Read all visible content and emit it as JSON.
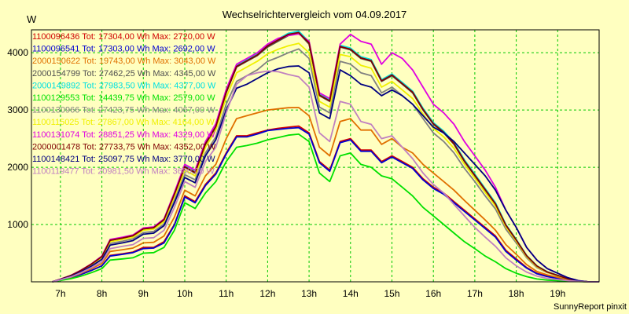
{
  "chart_data": {
    "type": "line",
    "title": "Wechselrichtervergleich vom 04.09.2017",
    "ylabel": "W",
    "footer": "SunnyReport pinxit",
    "ylim": [
      0,
      4400
    ],
    "xlim": [
      6.3,
      20.0
    ],
    "y_ticks": [
      1000,
      2000,
      3000,
      4000
    ],
    "x_ticks": [
      {
        "v": 7,
        "label": "7h"
      },
      {
        "v": 8,
        "label": "8h"
      },
      {
        "v": 9,
        "label": "9h"
      },
      {
        "v": 10,
        "label": "10h"
      },
      {
        "v": 11,
        "label": "11h"
      },
      {
        "v": 12,
        "label": "12h"
      },
      {
        "v": 13,
        "label": "13h"
      },
      {
        "v": 14,
        "label": "14h"
      },
      {
        "v": 15,
        "label": "15h"
      },
      {
        "v": 16,
        "label": "16h"
      },
      {
        "v": 17,
        "label": "17h"
      },
      {
        "v": 18,
        "label": "18h"
      },
      {
        "v": 19,
        "label": "19h"
      }
    ],
    "grid": true,
    "legend_position": "top-left",
    "background": "#ffffc0",
    "plot_background": "#ffffc0",
    "grid_color": "#00c800",
    "x": [
      6.8,
      7.0,
      7.25,
      7.5,
      7.75,
      8.0,
      8.2,
      8.5,
      8.75,
      9.0,
      9.25,
      9.5,
      9.75,
      10.0,
      10.25,
      10.5,
      10.75,
      11.0,
      11.25,
      11.5,
      11.75,
      12.0,
      12.25,
      12.5,
      12.75,
      13.0,
      13.25,
      13.5,
      13.75,
      14.0,
      14.25,
      14.5,
      14.75,
      15.0,
      15.25,
      15.5,
      15.75,
      16.0,
      16.25,
      16.5,
      16.75,
      17.0,
      17.25,
      17.5,
      17.75,
      18.0,
      18.25,
      18.5,
      18.75,
      19.0,
      19.25,
      19.5,
      19.75,
      20.0
    ],
    "series": [
      {
        "name": "1100096436 Tot: 17304,00 Wh Max: 2720,00 W",
        "color": "#d00000",
        "values": [
          0,
          30,
          70,
          130,
          200,
          280,
          460,
          490,
          520,
          600,
          600,
          700,
          1000,
          1500,
          1400,
          1700,
          1900,
          2250,
          2550,
          2550,
          2600,
          2650,
          2680,
          2700,
          2720,
          2600,
          2100,
          1950,
          2450,
          2500,
          2300,
          2300,
          2100,
          2200,
          2100,
          2000,
          1800,
          1650,
          1550,
          1400,
          1250,
          1100,
          950,
          800,
          550,
          400,
          250,
          150,
          100,
          70,
          30,
          10,
          0,
          0
        ]
      },
      {
        "name": "1100096541 Tot: 17303,00 Wh Max: 2692,00 W",
        "color": "#0000d0",
        "values": [
          0,
          30,
          70,
          130,
          200,
          280,
          450,
          480,
          510,
          580,
          590,
          680,
          990,
          1480,
          1380,
          1680,
          1880,
          2230,
          2530,
          2530,
          2580,
          2640,
          2660,
          2680,
          2692,
          2580,
          2080,
          1930,
          2430,
          2480,
          2280,
          2280,
          2080,
          2180,
          2080,
          1980,
          1780,
          1630,
          1530,
          1380,
          1230,
          1080,
          930,
          780,
          530,
          380,
          240,
          140,
          90,
          60,
          25,
          8,
          0,
          0
        ]
      },
      {
        "name": "2000150622 Tot: 19743,00 Wh Max: 3043,00 W",
        "color": "#e07000",
        "values": [
          0,
          35,
          80,
          150,
          230,
          320,
          530,
          560,
          590,
          680,
          690,
          800,
          1130,
          1600,
          1500,
          1850,
          2050,
          2500,
          2850,
          2900,
          2950,
          3000,
          3020,
          3040,
          3043,
          2900,
          2350,
          2200,
          2800,
          2850,
          2650,
          2650,
          2400,
          2500,
          2350,
          2250,
          2050,
          1900,
          1750,
          1600,
          1420,
          1250,
          1080,
          900,
          650,
          480,
          300,
          180,
          120,
          80,
          35,
          10,
          0,
          0
        ]
      },
      {
        "name": "2000154799 Tot: 27462,25 Wh Max: 4345,00 W",
        "color": "#505050",
        "values": [
          0,
          45,
          110,
          200,
          310,
          440,
          720,
          760,
          800,
          920,
          940,
          1080,
          1520,
          2000,
          1900,
          2400,
          2700,
          3300,
          3750,
          3850,
          3950,
          4100,
          4200,
          4300,
          4345,
          4150,
          3250,
          3150,
          4100,
          4050,
          3900,
          3850,
          3500,
          3600,
          3450,
          3300,
          3000,
          2750,
          2600,
          2400,
          2100,
          1850,
          1600,
          1350,
          980,
          720,
          450,
          270,
          170,
          110,
          50,
          15,
          0,
          0
        ]
      },
      {
        "name": "2000149892 Tot: 27983,50 Wh Max: 4377,00 W",
        "color": "#00e0e0",
        "values": [
          0,
          45,
          110,
          200,
          310,
          440,
          730,
          770,
          810,
          930,
          950,
          1090,
          1540,
          2020,
          1920,
          2420,
          2720,
          3330,
          3780,
          3880,
          3980,
          4140,
          4240,
          4340,
          4377,
          4190,
          3280,
          3180,
          4130,
          4080,
          3930,
          3880,
          3530,
          3630,
          3480,
          3330,
          3030,
          2780,
          2630,
          2430,
          2130,
          1880,
          1630,
          1380,
          1000,
          740,
          460,
          280,
          175,
          115,
          52,
          16,
          0,
          0
        ]
      },
      {
        "name": "1100129553 Tot: 14439,75 Wh Max: 2579,00 W",
        "color": "#00e000",
        "values": [
          0,
          25,
          55,
          100,
          160,
          230,
          380,
          400,
          420,
          500,
          510,
          600,
          900,
          1380,
          1280,
          1550,
          1750,
          2100,
          2350,
          2380,
          2420,
          2480,
          2520,
          2560,
          2579,
          2450,
          1900,
          1750,
          2200,
          2250,
          2050,
          2000,
          1850,
          1800,
          1650,
          1500,
          1300,
          1150,
          1000,
          850,
          700,
          580,
          450,
          350,
          230,
          150,
          90,
          50,
          30,
          20,
          10,
          5,
          0,
          0
        ]
      },
      {
        "name": "1100130966 Tot: 27423,75 Wh Max: 4067,00 W",
        "color": "#808080",
        "values": [
          0,
          42,
          100,
          185,
          290,
          410,
          670,
          710,
          750,
          860,
          880,
          1010,
          1420,
          1870,
          1780,
          2250,
          2530,
          3100,
          3500,
          3600,
          3700,
          3850,
          3920,
          4000,
          4067,
          3900,
          3050,
          2950,
          3850,
          3800,
          3650,
          3600,
          3300,
          3400,
          3250,
          3100,
          2850,
          2600,
          2450,
          2250,
          1980,
          1750,
          1500,
          1270,
          920,
          680,
          420,
          250,
          160,
          105,
          48,
          14,
          0,
          0
        ]
      },
      {
        "name": "1100115025 Tot: 27867,00 Wh Max: 4164,00 W",
        "color": "#f0f000",
        "values": [
          0,
          44,
          105,
          195,
          300,
          430,
          700,
          740,
          780,
          900,
          920,
          1050,
          1480,
          1950,
          1850,
          2350,
          2650,
          3220,
          3650,
          3750,
          3850,
          3980,
          4060,
          4120,
          4164,
          4000,
          3150,
          3050,
          3970,
          3930,
          3780,
          3730,
          3400,
          3500,
          3350,
          3200,
          2930,
          2680,
          2530,
          2330,
          2050,
          1810,
          1560,
          1320,
          960,
          710,
          440,
          265,
          165,
          108,
          49,
          15,
          0,
          0
        ]
      },
      {
        "name": "1100131074 Tot: 28851,25 Wh Max: 4329,00 W",
        "color": "#e000e0",
        "values": [
          0,
          46,
          112,
          205,
          315,
          450,
          740,
          780,
          820,
          940,
          960,
          1100,
          1560,
          2050,
          1950,
          2450,
          2760,
          3360,
          3800,
          3900,
          4000,
          4150,
          4250,
          4300,
          4329,
          4200,
          3300,
          3200,
          4150,
          4320,
          4200,
          4150,
          3800,
          4000,
          3900,
          3700,
          3400,
          3100,
          2950,
          2750,
          2450,
          2200,
          1950,
          1650,
          1250,
          950,
          600,
          380,
          230,
          150,
          70,
          20,
          0,
          0
        ]
      },
      {
        "name": "2000001478 Tot: 27733,75 Wh Max: 4352,00 W",
        "color": "#800000",
        "values": [
          0,
          45,
          110,
          200,
          310,
          440,
          725,
          765,
          805,
          925,
          945,
          1085,
          1530,
          2010,
          1910,
          2410,
          2710,
          3310,
          3760,
          3860,
          3960,
          4120,
          4220,
          4320,
          4352,
          4170,
          3260,
          3160,
          4110,
          4060,
          3910,
          3860,
          3510,
          3610,
          3460,
          3310,
          3010,
          2760,
          2610,
          2410,
          2110,
          1860,
          1610,
          1360,
          990,
          730,
          455,
          275,
          172,
          112,
          51,
          15,
          0,
          0
        ]
      },
      {
        "name": "1100148421 Tot: 25097,75 Wh Max: 3770,00 W",
        "color": "#000080",
        "values": [
          0,
          40,
          95,
          175,
          275,
          390,
          640,
          680,
          720,
          830,
          850,
          980,
          1380,
          1820,
          1730,
          2200,
          2480,
          3000,
          3380,
          3450,
          3550,
          3650,
          3720,
          3760,
          3770,
          3650,
          2950,
          2850,
          3700,
          3600,
          3450,
          3400,
          3250,
          3350,
          3250,
          3100,
          2900,
          2700,
          2600,
          2450,
          2250,
          2050,
          1850,
          1600,
          1250,
          950,
          600,
          380,
          230,
          150,
          70,
          20,
          0,
          0
        ]
      },
      {
        "name": "1100119477 Tot: 20981,50 Wh Max: 3680,00 W",
        "color": "#c080c0",
        "values": [
          0,
          35,
          85,
          160,
          250,
          350,
          580,
          620,
          650,
          760,
          770,
          900,
          1300,
          1750,
          1650,
          2100,
          2350,
          2950,
          3450,
          3600,
          3650,
          3680,
          3670,
          3620,
          3580,
          3400,
          2600,
          2450,
          3150,
          3100,
          2800,
          2750,
          2500,
          2550,
          2350,
          2150,
          1900,
          1700,
          1550,
          1350,
          1150,
          950,
          780,
          620,
          420,
          280,
          170,
          100,
          60,
          40,
          20,
          8,
          0,
          0
        ]
      }
    ]
  }
}
